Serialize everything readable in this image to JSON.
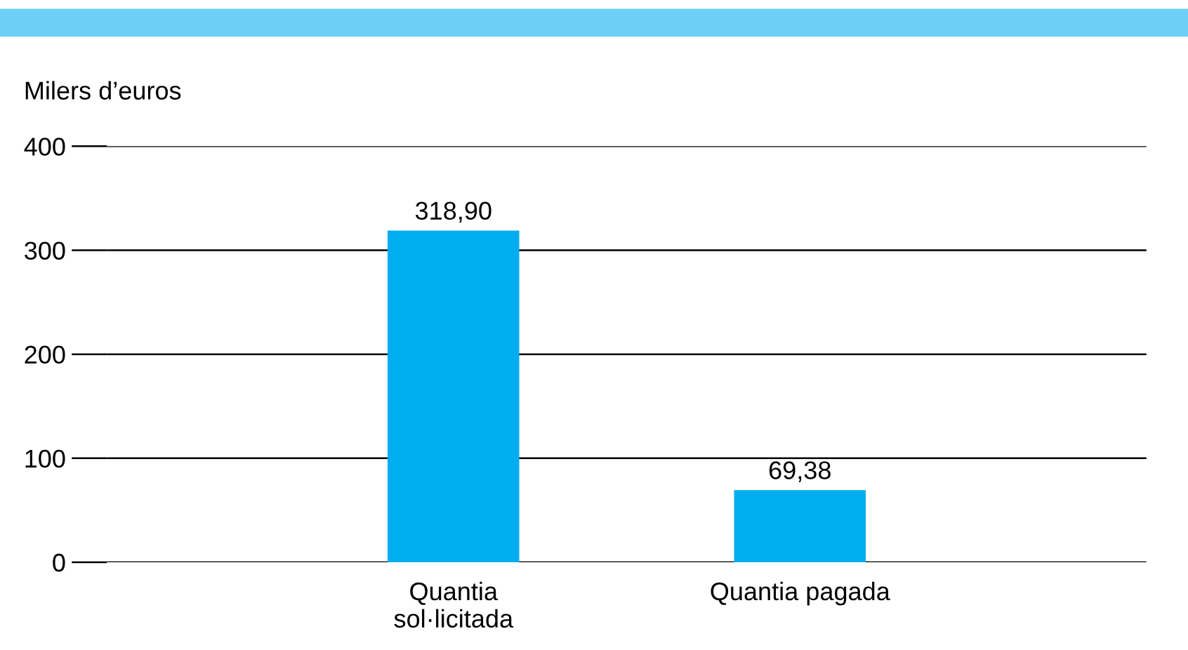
{
  "chart_data": {
    "type": "bar",
    "ylabel": "Milers d’euros",
    "categories": [
      "Quantia\nsol·licitada",
      "Quantia pagada"
    ],
    "values": [
      318.9,
      69.38
    ],
    "value_labels": [
      "318,90",
      "69,38"
    ],
    "color": "#00aeef",
    "ylim": [
      0,
      400
    ],
    "yticks": [
      0,
      100,
      200,
      300,
      400
    ],
    "grid": "y"
  }
}
